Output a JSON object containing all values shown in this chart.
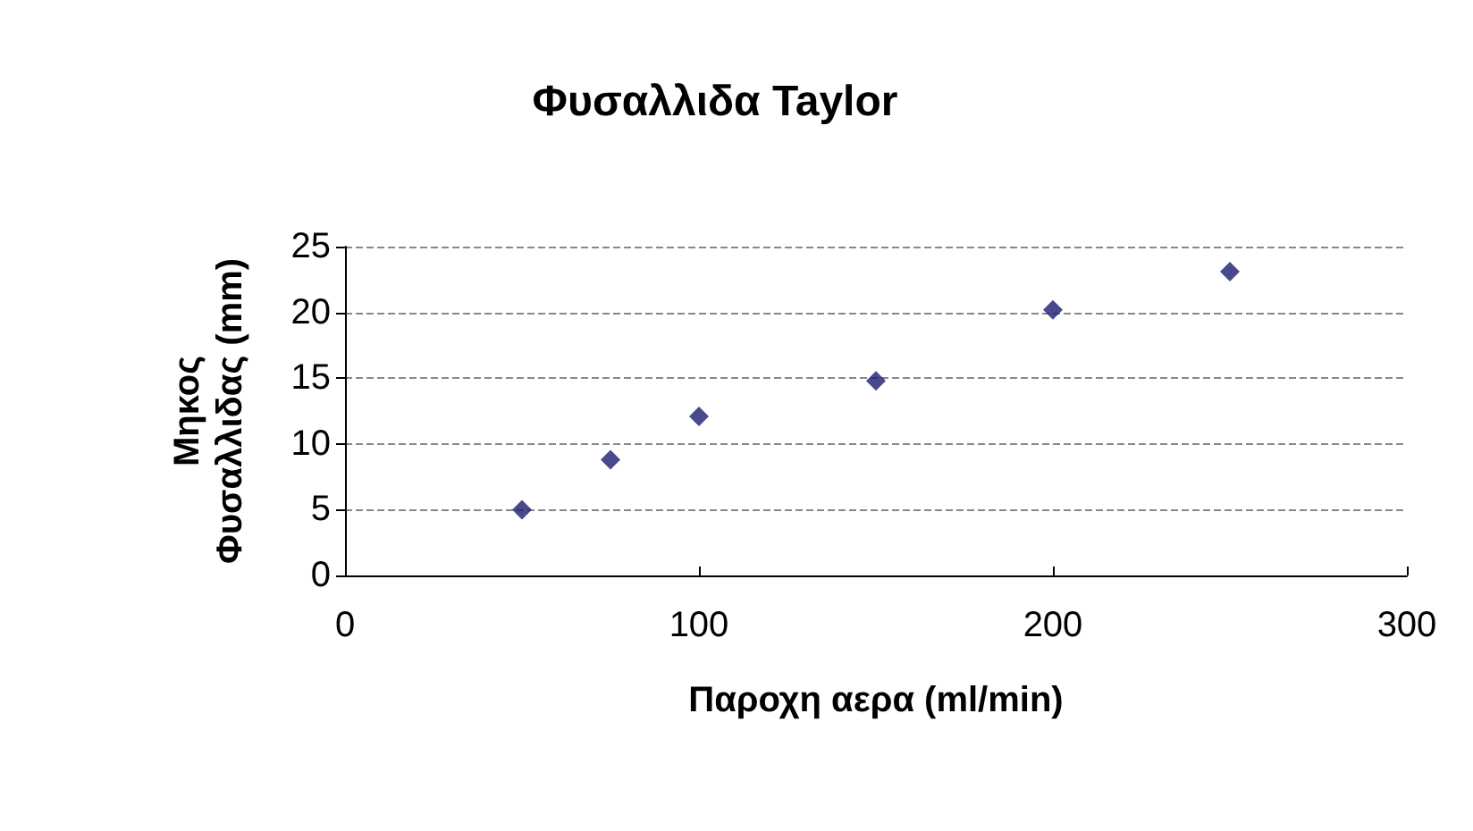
{
  "chart_data": {
    "type": "scatter",
    "title": "Φυσαλλιδα Taylor",
    "xlabel": "Παροχη αερα (ml/min)",
    "ylabel": "Μηκος\nΦυσαλλιδας (mm)",
    "x": [
      50,
      75,
      100,
      150,
      200,
      250
    ],
    "series": [
      {
        "color": "#1c1c70",
        "values": [
          5,
          8.8,
          12.1,
          14.8,
          20.2,
          23.1
        ]
      }
    ],
    "xlim": [
      0,
      300
    ],
    "xticks": [
      0,
      100,
      200,
      300
    ],
    "ylim": [
      0,
      25
    ],
    "yticks": [
      0,
      5,
      10,
      15,
      20,
      25
    ],
    "grid": "y",
    "marker": "diamond"
  }
}
